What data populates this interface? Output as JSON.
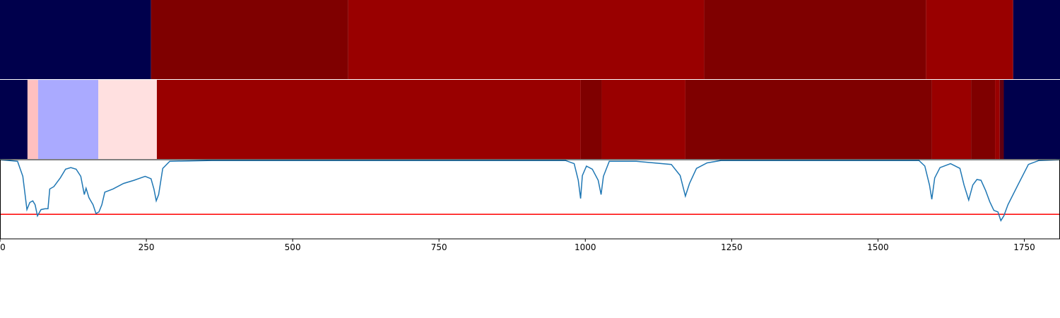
{
  "chart_data": {
    "type": "segments-line",
    "heatmaps": [
      {
        "edges": [
          0,
          258,
          595,
          1203,
          1582,
          1731,
          1811
        ],
        "colors": [
          "#00004c",
          "#7f0000",
          "#990000",
          "#7f0000",
          "#990000",
          "#00004c"
        ]
      },
      {
        "edges": [
          0,
          47,
          65,
          168,
          268,
          992,
          1028,
          1171,
          1592,
          1659,
          1700,
          1708,
          1715,
          1811
        ],
        "colors": [
          "#00004c",
          "#ffc0c0",
          "#aaaaff",
          "#ffe0e0",
          "#990000",
          "#7f0000",
          "#990000",
          "#7f0000",
          "#990000",
          "#7f0000",
          "#990000",
          "#600010",
          "#00004c"
        ]
      }
    ],
    "line": {
      "color": "#1f77b4",
      "x": [
        0,
        30,
        39,
        46,
        51,
        56,
        60,
        64,
        70,
        77,
        82,
        85,
        92,
        103,
        112,
        121,
        130,
        138,
        144,
        147,
        152,
        159,
        164,
        169,
        174,
        179,
        193,
        211,
        229,
        248,
        258,
        263,
        267,
        271,
        278,
        290,
        362,
        604,
        966,
        981,
        988,
        992,
        995,
        1002,
        1012,
        1022,
        1027,
        1031,
        1041,
        1087,
        1147,
        1162,
        1171,
        1178,
        1190,
        1208,
        1232,
        1570,
        1580,
        1588,
        1592,
        1597,
        1606,
        1624,
        1640,
        1647,
        1655,
        1662,
        1669,
        1676,
        1684,
        1691,
        1698,
        1705,
        1710,
        1715,
        1722,
        1739,
        1757,
        1775,
        1811
      ],
      "values": [
        1.0,
        0.98,
        0.79,
        0.37,
        0.46,
        0.48,
        0.43,
        0.29,
        0.37,
        0.38,
        0.38,
        0.63,
        0.66,
        0.77,
        0.88,
        0.9,
        0.88,
        0.79,
        0.56,
        0.64,
        0.52,
        0.43,
        0.32,
        0.34,
        0.43,
        0.59,
        0.63,
        0.7,
        0.74,
        0.79,
        0.76,
        0.63,
        0.48,
        0.56,
        0.89,
        0.98,
        0.99,
        0.99,
        0.99,
        0.95,
        0.74,
        0.51,
        0.8,
        0.92,
        0.88,
        0.74,
        0.56,
        0.79,
        0.98,
        0.98,
        0.94,
        0.8,
        0.54,
        0.7,
        0.89,
        0.96,
        0.99,
        0.99,
        0.92,
        0.68,
        0.5,
        0.77,
        0.9,
        0.95,
        0.89,
        0.68,
        0.49,
        0.68,
        0.75,
        0.74,
        0.61,
        0.47,
        0.36,
        0.34,
        0.23,
        0.29,
        0.43,
        0.68,
        0.94,
        0.99,
        1.0
      ]
    },
    "threshold": {
      "value": 0.31,
      "color": "#ff0000"
    },
    "xlim": [
      0,
      1811
    ],
    "ylim": [
      0,
      1
    ],
    "xticks": [
      0,
      250,
      500,
      750,
      1000,
      1250,
      1500,
      1750
    ]
  }
}
